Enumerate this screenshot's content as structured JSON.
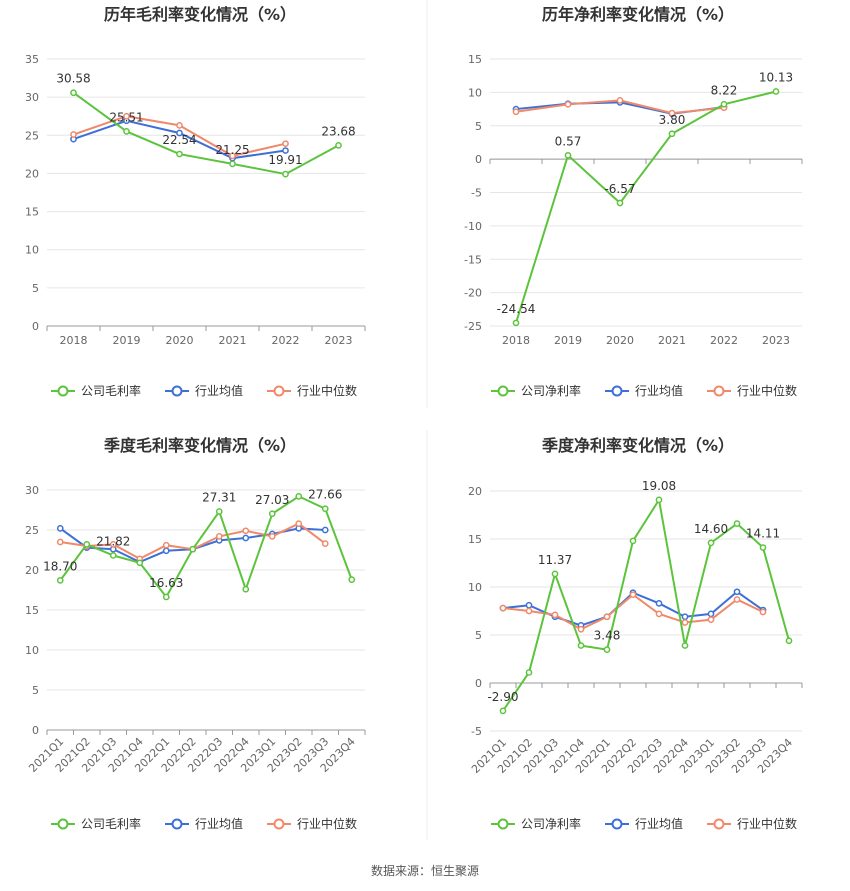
{
  "source": "数据来源：恒生聚源",
  "colors": {
    "company": "#5cc43c",
    "avg": "#3d70d6",
    "median": "#f0896a",
    "grid": "#e6e6e6",
    "axis": "#999999",
    "text": "#666666",
    "divider": "#eeeeee"
  },
  "legend_labels": [
    "公司毛利率",
    "行业均值",
    "行业中位数"
  ],
  "net_legend_labels": [
    "公司净利率",
    "行业均值",
    "行业中位数"
  ],
  "chart_data": [
    {
      "type": "line",
      "title": "历年毛利率变化情况（%）",
      "categories": [
        "2018",
        "2019",
        "2020",
        "2021",
        "2022",
        "2023"
      ],
      "yticks": [
        "0",
        "5",
        "10",
        "15",
        "20",
        "25",
        "30",
        "35"
      ],
      "ylim": [
        0,
        35
      ],
      "grid": true,
      "legend_position": "bottom-center",
      "series": [
        {
          "name": "公司毛利率",
          "values": [
            30.58,
            25.51,
            22.54,
            21.25,
            19.91,
            23.68
          ],
          "labels": [
            "30.58",
            "25.51",
            "22.54",
            "21.25",
            "19.91",
            "23.68"
          ]
        },
        {
          "name": "行业均值",
          "values": [
            24.5,
            26.9,
            25.3,
            22.0,
            23.0,
            null
          ]
        },
        {
          "name": "行业中位数",
          "values": [
            25.1,
            27.5,
            26.3,
            22.3,
            23.9,
            null
          ]
        }
      ]
    },
    {
      "type": "line",
      "title": "历年净利率变化情况（%）",
      "categories": [
        "2018",
        "2019",
        "2020",
        "2021",
        "2022",
        "2023"
      ],
      "yticks": [
        "-25",
        "-20",
        "-15",
        "-10",
        "-5",
        "0",
        "5",
        "10",
        "15"
      ],
      "ylim": [
        -25,
        15
      ],
      "grid": true,
      "legend_position": "bottom-center",
      "series": [
        {
          "name": "公司净利率",
          "values": [
            -24.54,
            0.57,
            -6.57,
            3.8,
            8.22,
            10.13
          ],
          "labels": [
            "-24.54",
            "0.57",
            "-6.57",
            "3.80",
            "8.22",
            "10.13"
          ]
        },
        {
          "name": "行业均值",
          "values": [
            7.5,
            8.3,
            8.5,
            6.8,
            7.8,
            null
          ]
        },
        {
          "name": "行业中位数",
          "values": [
            7.1,
            8.2,
            8.8,
            6.9,
            7.7,
            null
          ]
        }
      ]
    },
    {
      "type": "line",
      "title": "季度毛利率变化情况（%）",
      "categories": [
        "2021Q1",
        "2021Q2",
        "2021Q3",
        "2021Q4",
        "2022Q1",
        "2022Q2",
        "2022Q3",
        "2022Q4",
        "2023Q1",
        "2023Q2",
        "2023Q3",
        "2023Q4"
      ],
      "yticks": [
        "0",
        "5",
        "10",
        "15",
        "20",
        "25",
        "30"
      ],
      "ylim": [
        0,
        30
      ],
      "grid": true,
      "legend_position": "bottom-center",
      "series": [
        {
          "name": "公司毛利率",
          "values": [
            18.7,
            23.2,
            21.82,
            20.9,
            16.63,
            22.6,
            27.31,
            17.6,
            27.03,
            29.2,
            27.66,
            18.8
          ],
          "labels": [
            "18.70",
            "",
            "21.82",
            "",
            "16.63",
            "",
            "27.31",
            "",
            "27.03",
            "",
            "27.66",
            ""
          ]
        },
        {
          "name": "行业均值",
          "values": [
            25.2,
            22.8,
            22.6,
            21.0,
            22.4,
            22.6,
            23.7,
            24.0,
            24.5,
            25.2,
            25.0,
            null
          ]
        },
        {
          "name": "行业中位数",
          "values": [
            23.5,
            23.0,
            23.2,
            21.4,
            23.1,
            22.6,
            24.2,
            24.9,
            24.2,
            25.8,
            23.3,
            null
          ]
        }
      ]
    },
    {
      "type": "line",
      "title": "季度净利率变化情况（%）",
      "categories": [
        "2021Q1",
        "2021Q2",
        "2021Q3",
        "2021Q4",
        "2022Q1",
        "2022Q2",
        "2022Q3",
        "2022Q4",
        "2023Q1",
        "2023Q2",
        "2023Q3",
        "2023Q4"
      ],
      "yticks": [
        "-5",
        "0",
        "5",
        "10",
        "15",
        "20"
      ],
      "ylim": [
        -5,
        20
      ],
      "grid": true,
      "legend_position": "bottom-center",
      "series": [
        {
          "name": "公司净利率",
          "values": [
            -2.9,
            1.1,
            11.37,
            3.9,
            3.48,
            14.8,
            19.08,
            3.9,
            14.6,
            16.6,
            14.11,
            4.4
          ],
          "labels": [
            "-2.90",
            "",
            "11.37",
            "",
            "3.48",
            "",
            "19.08",
            "",
            "14.60",
            "",
            "14.11",
            ""
          ]
        },
        {
          "name": "行业均值",
          "values": [
            7.8,
            8.1,
            6.9,
            6.0,
            6.9,
            9.4,
            8.3,
            6.9,
            7.2,
            9.5,
            7.6,
            null
          ]
        },
        {
          "name": "行业中位数",
          "values": [
            7.8,
            7.5,
            7.1,
            5.6,
            6.9,
            9.2,
            7.2,
            6.3,
            6.6,
            8.7,
            7.4,
            null
          ]
        }
      ]
    }
  ]
}
